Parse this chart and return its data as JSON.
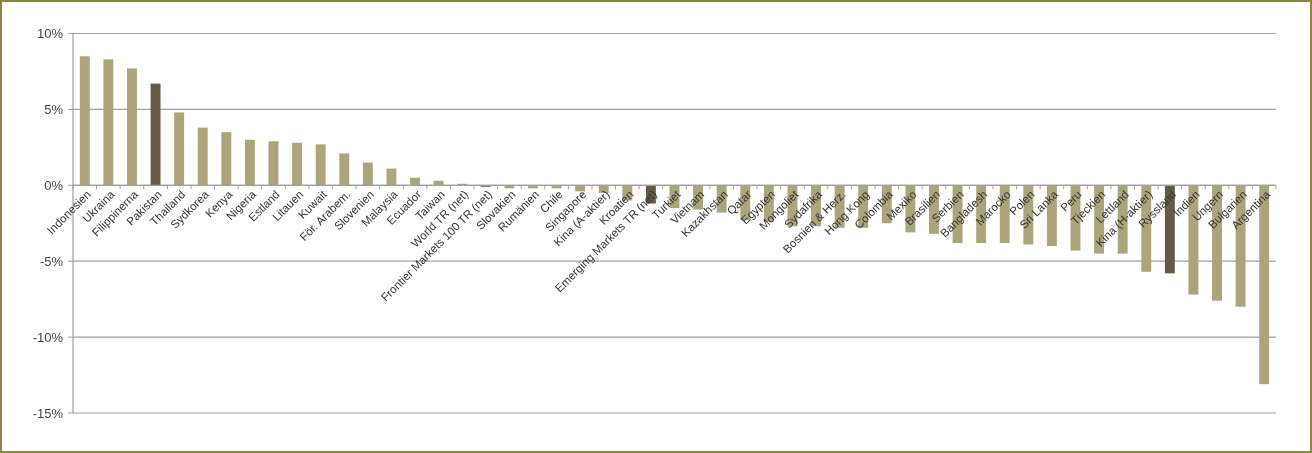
{
  "chart_data": {
    "type": "bar",
    "categories": [
      "Indonesien",
      "Ukraina",
      "Filippinerna",
      "Pakistan",
      "Thailand",
      "Sydkorea",
      "Kenya",
      "Nigeria",
      "Estland",
      "Litauen",
      "Kuwait",
      "För. Arabem.",
      "Slovenien",
      "Malaysia",
      "Ecuador",
      "Taiwan",
      "World TR (net)",
      "Frontier Markets 100 TR (net)",
      "Slovakien",
      "Rumänien",
      "Chile",
      "Singapore",
      "Kina (A-aktier)",
      "Kroatien",
      "Emerging Markets TR (net)",
      "Turkiet",
      "Vietnam",
      "Kazakhstan",
      "Qatar",
      "Egypten",
      "Mongoliet",
      "Sydafrika",
      "Bosnien & Herz.",
      "Hong Kong",
      "Colombia",
      "Mexiko",
      "Brasilien",
      "Serbien",
      "Bangladesh",
      "Marocko",
      "Polen",
      "Sri Lanka",
      "Peru",
      "Tjeckien",
      "Lettland",
      "Kina (H-aktier)",
      "Ryssland",
      "Indien",
      "Ungern",
      "Bulgarien",
      "Argentina"
    ],
    "values": [
      8.5,
      8.3,
      7.7,
      6.7,
      4.8,
      3.8,
      3.5,
      3.0,
      2.9,
      2.8,
      2.7,
      2.1,
      1.5,
      1.1,
      0.5,
      0.3,
      0.1,
      -0.1,
      -0.2,
      -0.2,
      -0.2,
      -0.4,
      -0.5,
      -1.0,
      -1.2,
      -1.5,
      -1.6,
      -1.8,
      -2.3,
      -2.4,
      -2.7,
      -2.7,
      -2.8,
      -2.8,
      -2.5,
      -3.1,
      -3.2,
      -3.8,
      -3.8,
      -3.8,
      -3.9,
      -4.0,
      -4.3,
      -4.5,
      -4.5,
      -5.7,
      -5.8,
      -7.2,
      -7.6,
      -8.0,
      -13.1
    ],
    "colors": [
      "#aca57b",
      "#aca57b",
      "#aca57b",
      "#645a45",
      "#aca57b",
      "#aca57b",
      "#aca57b",
      "#aca57b",
      "#aca57b",
      "#aca57b",
      "#aca57b",
      "#aca57b",
      "#aca57b",
      "#aca57b",
      "#aca57b",
      "#aca57b",
      "#aca57b",
      "#645a45",
      "#aca57b",
      "#aca57b",
      "#aca57b",
      "#aca57b",
      "#aca57b",
      "#aca57b",
      "#645a45",
      "#aca57b",
      "#aca57b",
      "#aca57b",
      "#aca57b",
      "#aca57b",
      "#aca57b",
      "#aca57b",
      "#aca57b",
      "#aca57b",
      "#aca57b",
      "#aca57b",
      "#aca57b",
      "#aca57b",
      "#aca57b",
      "#aca57b",
      "#aca57b",
      "#aca57b",
      "#aca57b",
      "#aca57b",
      "#aca57b",
      "#aca57b",
      "#645a45",
      "#aca57b",
      "#aca57b",
      "#aca57b",
      "#aca57b"
    ],
    "ylim": [
      -15,
      10
    ],
    "yticks": [
      {
        "value": -15,
        "label": "-15%"
      },
      {
        "value": -10,
        "label": "-10%"
      },
      {
        "value": -5,
        "label": "-5%"
      },
      {
        "value": 0,
        "label": "0%"
      },
      {
        "value": 5,
        "label": "5%"
      },
      {
        "value": 10,
        "label": "10%"
      }
    ],
    "grid": "y"
  }
}
